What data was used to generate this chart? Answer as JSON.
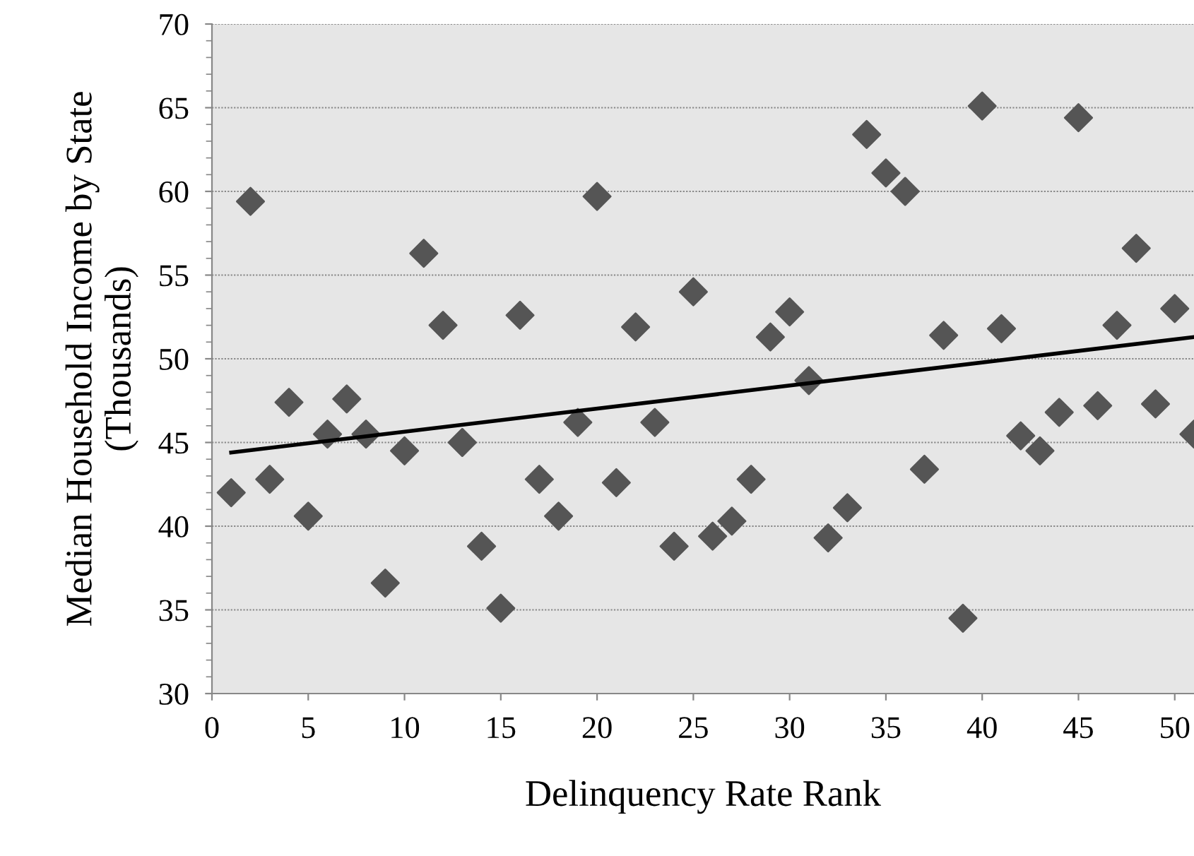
{
  "chart_data": {
    "type": "scatter",
    "xlabel": "Delinquency Rate Rank",
    "ylabel": "Median Household Income by State\n(Thousands)",
    "x": [
      1,
      2,
      3,
      4,
      5,
      6,
      7,
      8,
      9,
      10,
      11,
      12,
      13,
      14,
      15,
      16,
      17,
      18,
      19,
      20,
      21,
      22,
      23,
      24,
      25,
      26,
      27,
      28,
      29,
      30,
      31,
      32,
      33,
      34,
      35,
      36,
      37,
      38,
      39,
      40,
      41,
      42,
      43,
      44,
      45,
      46,
      47,
      48,
      49,
      50,
      51
    ],
    "series": [
      {
        "marker": "diamond",
        "color": "#555555",
        "values": [
          42,
          59.4,
          42.8,
          47.4,
          40.6,
          45.5,
          47.6,
          45.5,
          36.6,
          44.5,
          56.3,
          52,
          45,
          38.8,
          35.1,
          52.6,
          42.8,
          40.6,
          46.2,
          59.7,
          42.6,
          51.9,
          46.2,
          38.8,
          54,
          39.4,
          40.3,
          42.8,
          51.3,
          52.8,
          48.7,
          39.3,
          41.1,
          63.4,
          61.1,
          60,
          43.4,
          51.4,
          34.5,
          65.1,
          51.8,
          45.4,
          44.5,
          46.8,
          64.4,
          47.2,
          52,
          56.6,
          47.3,
          53,
          45.5
        ]
      },
      {
        "type": "line",
        "color": "#000000",
        "x": [
          1,
          51
        ],
        "values": [
          44.4,
          51.3
        ]
      }
    ],
    "xlim": [
      0,
      51
    ],
    "ylim": [
      30,
      70
    ],
    "xticks": [
      0,
      5,
      10,
      15,
      20,
      25,
      30,
      35,
      40,
      45,
      50
    ],
    "yticks": [
      30,
      35,
      40,
      45,
      50,
      55,
      60,
      65,
      70
    ],
    "grid": "y",
    "legend": false
  }
}
